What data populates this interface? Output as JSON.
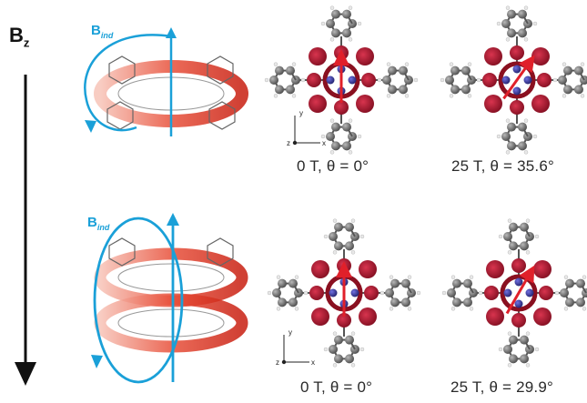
{
  "field_label": {
    "main": "B",
    "sub": "z"
  },
  "induced_label": {
    "main": "B",
    "sub": "ind"
  },
  "captions": {
    "top_left": "0 T, θ = 0°",
    "top_right": "25 T, θ = 35.6°",
    "bottom_left": "0 T, θ = 0°",
    "bottom_right": "25 T, θ = 29.9°"
  },
  "axis_labels": {
    "x": "x",
    "y": "y",
    "z": "z"
  },
  "colors": {
    "current_red": "#d42a1c",
    "field_blue": "#1aa0d8",
    "lobe_red": "#a8162c",
    "carbon_grey": "#7a7a7a",
    "nitrogen_blue": "#3a3aa8",
    "arrow_black": "#111111"
  }
}
